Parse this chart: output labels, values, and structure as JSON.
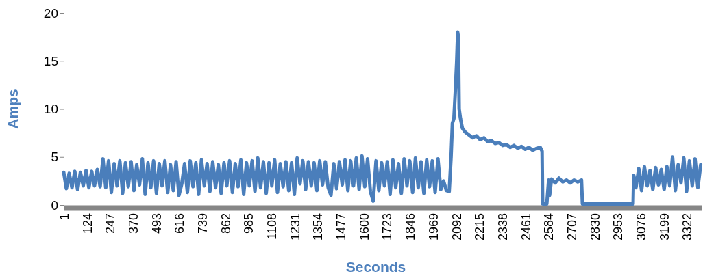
{
  "chart_data": {
    "type": "line",
    "xlabel": "Seconds",
    "ylabel": "Amps",
    "x": [
      1,
      15,
      30,
      45,
      60,
      75,
      90,
      105,
      120,
      135,
      150,
      165,
      180,
      195,
      210,
      225,
      240,
      255,
      270,
      285,
      300,
      315,
      330,
      345,
      360,
      375,
      390,
      405,
      420,
      435,
      450,
      465,
      480,
      495,
      510,
      525,
      540,
      555,
      570,
      585,
      600,
      615,
      630,
      645,
      660,
      675,
      690,
      705,
      720,
      735,
      750,
      765,
      780,
      795,
      810,
      825,
      840,
      855,
      870,
      885,
      900,
      915,
      930,
      945,
      960,
      975,
      990,
      1005,
      1020,
      1035,
      1050,
      1065,
      1080,
      1095,
      1110,
      1125,
      1140,
      1155,
      1170,
      1185,
      1200,
      1215,
      1230,
      1245,
      1260,
      1275,
      1290,
      1305,
      1320,
      1335,
      1350,
      1365,
      1380,
      1395,
      1410,
      1425,
      1440,
      1455,
      1470,
      1485,
      1500,
      1515,
      1530,
      1545,
      1560,
      1575,
      1590,
      1605,
      1620,
      1635,
      1650,
      1665,
      1680,
      1695,
      1710,
      1725,
      1740,
      1755,
      1770,
      1785,
      1800,
      1815,
      1830,
      1845,
      1860,
      1875,
      1890,
      1905,
      1920,
      1935,
      1950,
      1965,
      1980,
      1995,
      2010,
      2025,
      2040,
      2055,
      2065,
      2072,
      2080,
      2088,
      2095,
      2100,
      2104,
      2108,
      2115,
      2125,
      2140,
      2160,
      2180,
      2200,
      2220,
      2240,
      2260,
      2280,
      2300,
      2320,
      2340,
      2360,
      2380,
      2400,
      2420,
      2440,
      2460,
      2480,
      2500,
      2520,
      2540,
      2550,
      2553,
      2575,
      2585,
      2590,
      2600,
      2620,
      2640,
      2660,
      2680,
      2700,
      2720,
      2740,
      2760,
      2765,
      2800,
      2900,
      3000,
      3035,
      3038,
      3050,
      3065,
      3080,
      3095,
      3110,
      3125,
      3140,
      3155,
      3170,
      3185,
      3200,
      3215,
      3230,
      3245,
      3260,
      3275,
      3290,
      3305,
      3320,
      3335,
      3350,
      3365,
      3380,
      3395
    ],
    "series": [
      {
        "color": "#4a7ebb",
        "values": [
          3.4,
          1.7,
          3.3,
          1.8,
          3.5,
          1.6,
          3.4,
          2.0,
          3.6,
          1.8,
          3.5,
          2.0,
          3.7,
          1.9,
          4.8,
          1.8,
          4.6,
          1.3,
          4.3,
          2.0,
          4.6,
          1.2,
          4.4,
          1.9,
          4.5,
          1.5,
          4.2,
          2.1,
          4.8,
          1.1,
          4.4,
          1.8,
          4.6,
          1.2,
          4.3,
          2.0,
          4.6,
          1.3,
          4.2,
          1.5,
          4.5,
          1.0,
          2.2,
          4.3,
          1.3,
          4.6,
          1.9,
          4.4,
          1.1,
          4.7,
          2.0,
          4.3,
          1.4,
          4.5,
          1.8,
          4.2,
          1.2,
          4.4,
          2.0,
          4.6,
          1.3,
          4.3,
          1.9,
          4.7,
          1.1,
          4.4,
          2.0,
          4.6,
          1.4,
          4.9,
          1.8,
          4.5,
          1.2,
          4.4,
          2.0,
          4.7,
          1.3,
          4.3,
          1.9,
          4.5,
          1.5,
          4.4,
          1.1,
          4.9,
          2.2,
          4.6,
          1.6,
          4.5,
          2.0,
          4.4,
          1.5,
          4.6,
          2.1,
          4.5,
          1.8,
          1.0,
          4.3,
          1.7,
          4.5,
          2.1,
          4.7,
          1.5,
          4.6,
          2.0,
          4.9,
          1.6,
          5.1,
          1.9,
          4.8,
          1.4,
          0.4,
          4.6,
          1.5,
          4.4,
          2.0,
          4.5,
          1.1,
          4.7,
          1.8,
          4.3,
          1.2,
          4.8,
          2.0,
          4.6,
          1.3,
          4.9,
          1.8,
          4.5,
          1.2,
          4.7,
          1.9,
          4.6,
          1.3,
          4.8,
          1.6,
          2.5,
          1.5,
          1.4,
          5,
          8.5,
          9,
          12,
          15,
          18,
          17.5,
          10,
          9,
          8,
          7.6,
          7.3,
          7.0,
          7.2,
          6.8,
          7.0,
          6.6,
          6.7,
          6.4,
          6.5,
          6.2,
          6.3,
          6.0,
          6.2,
          5.9,
          6.1,
          5.8,
          6.0,
          5.7,
          5.9,
          6.0,
          5.6,
          0.1,
          0.1,
          2.6,
          1.0,
          2.7,
          2.3,
          2.8,
          2.4,
          2.6,
          2.3,
          2.6,
          2.4,
          2.6,
          0.1,
          0.1,
          0.1,
          0.1,
          0.1,
          3.1,
          1.8,
          3.8,
          1.5,
          4.0,
          2.0,
          3.6,
          1.6,
          3.9,
          2.1,
          3.7,
          1.6,
          4.0,
          2.0,
          5.0,
          1.5,
          4.2,
          2.3,
          4.9,
          1.4,
          4.6,
          2.0,
          4.8,
          1.8,
          4.2
        ]
      }
    ],
    "xlim": [
      1,
      3400
    ],
    "xticks": [
      1,
      124,
      247,
      370,
      493,
      616,
      739,
      862,
      985,
      1108,
      1231,
      1354,
      1477,
      1600,
      1723,
      1846,
      1969,
      2092,
      2215,
      2338,
      2461,
      2584,
      2707,
      2830,
      2953,
      3076,
      3199,
      3322
    ],
    "ylim": [
      0,
      20
    ],
    "yticks": [
      0,
      5,
      10,
      15,
      20
    ],
    "grid": false,
    "legend": false,
    "marker": "none",
    "line_style": "solid"
  }
}
